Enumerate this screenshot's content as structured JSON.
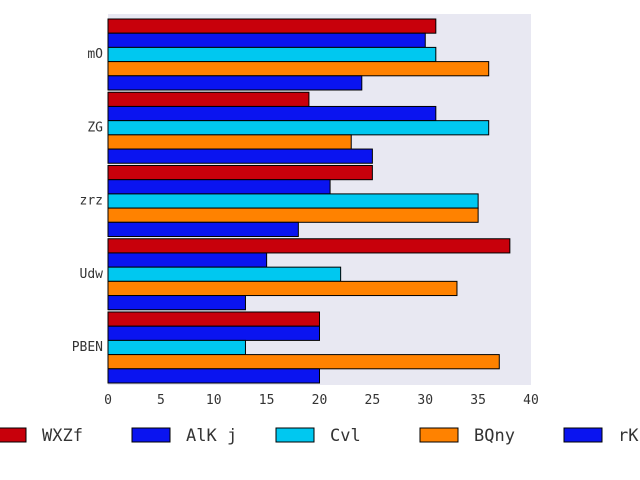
{
  "chart_data": {
    "type": "bar",
    "orientation": "horizontal",
    "categories": [
      "mO",
      "ZG",
      "zrz",
      "Udw",
      "PBEN"
    ],
    "series": [
      {
        "name": "WXZf",
        "color": "#c8000b",
        "values": [
          31,
          19,
          25,
          38,
          20
        ]
      },
      {
        "name": "AlK j",
        "color": "#0a14f0",
        "values": [
          30,
          31,
          21,
          15,
          20
        ]
      },
      {
        "name": "Cvl",
        "color": "#00c8f0",
        "values": [
          31,
          36,
          35,
          22,
          13
        ]
      },
      {
        "name": "BQny",
        "color": "#ff8200",
        "values": [
          36,
          23,
          35,
          33,
          37
        ]
      },
      {
        "name": "rK",
        "color": "#0a14f0",
        "values": [
          24,
          25,
          18,
          13,
          20
        ]
      }
    ],
    "xlim": [
      0,
      40
    ],
    "xticks": [
      "0",
      "5",
      "10",
      "15",
      "20",
      "25",
      "30",
      "35",
      "40"
    ],
    "grid": false,
    "legend_position": "bottom",
    "background": "#e8e8f2",
    "xlabel": "",
    "ylabel": "",
    "title": ""
  }
}
